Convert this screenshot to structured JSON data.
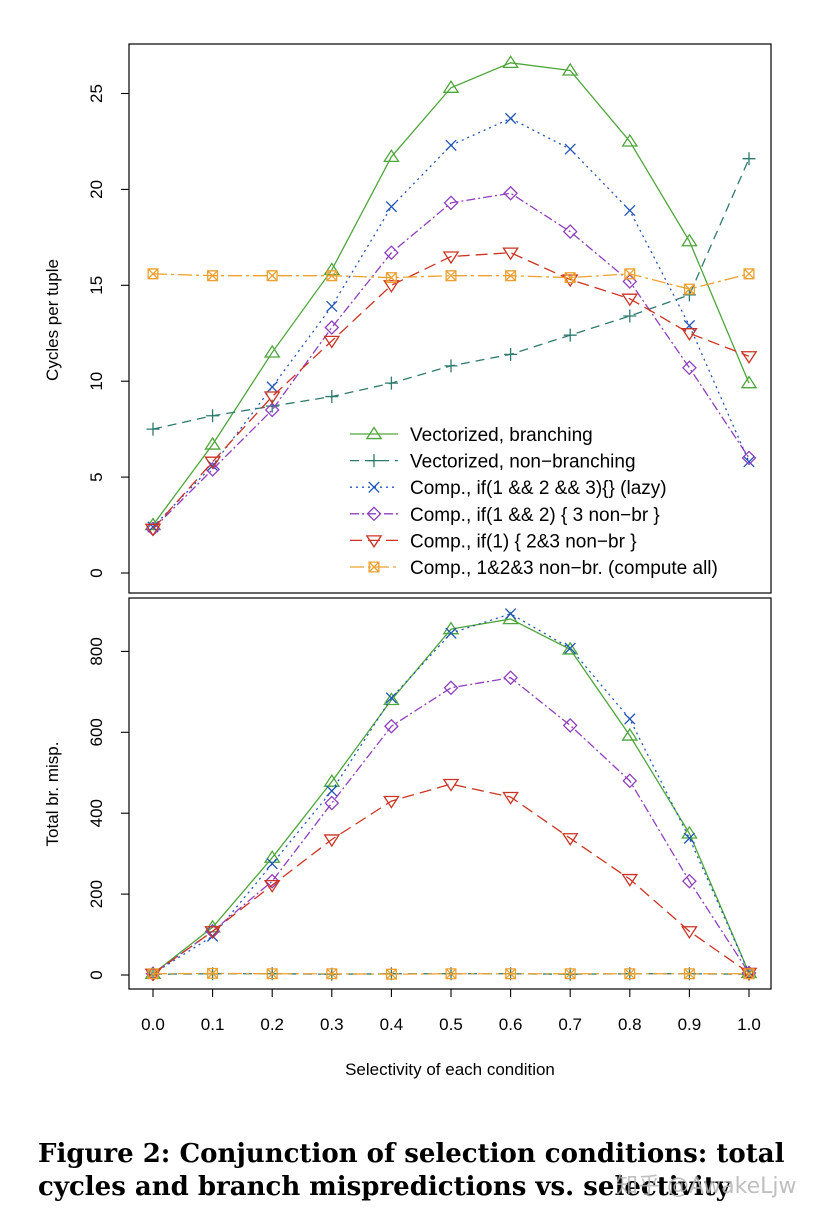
{
  "chart_data": [
    {
      "type": "line",
      "ylabel": "Cycles per tuple",
      "xlabel": "",
      "ylim": [
        0,
        27
      ],
      "yticks": [
        0,
        5,
        10,
        15,
        20,
        25
      ],
      "legend_position": "bottom-right",
      "x": [
        0.0,
        0.1,
        0.2,
        0.3,
        0.4,
        0.5,
        0.6,
        0.7,
        0.8,
        0.9,
        1.0
      ],
      "series": [
        {
          "name": "Vectorized, branching",
          "color": "#4da63a",
          "dash": "",
          "marker": "triangle-up",
          "values": [
            2.5,
            6.7,
            11.5,
            15.8,
            21.7,
            25.3,
            26.6,
            26.2,
            22.5,
            17.3,
            9.9
          ]
        },
        {
          "name": "Vectorized, non−branching",
          "color": "#2d7a6e",
          "dash": "9 6",
          "marker": "plus",
          "values": [
            7.5,
            8.2,
            8.7,
            9.2,
            9.9,
            10.8,
            11.4,
            12.4,
            13.4,
            14.5,
            21.6
          ]
        },
        {
          "name": "Comp., if(1 && 2 && 3){} (lazy)",
          "color": "#2255b8",
          "dash": "2 4",
          "marker": "cross",
          "values": [
            2.4,
            5.6,
            9.7,
            13.9,
            19.1,
            22.3,
            23.7,
            22.1,
            18.9,
            12.9,
            5.8
          ]
        },
        {
          "name": "Comp., if(1 && 2) { 3 non−br }",
          "color": "#8f3fbf",
          "dash": "9 3 2 3",
          "marker": "diamond",
          "values": [
            2.3,
            5.4,
            8.5,
            12.8,
            16.7,
            19.3,
            19.8,
            17.8,
            15.2,
            10.7,
            6.0
          ]
        },
        {
          "name": "Comp., if(1) { 2&3 non−br }",
          "color": "#cc3322",
          "dash": "12 6",
          "marker": "triangle-down",
          "values": [
            2.3,
            5.8,
            9.2,
            12.1,
            15.0,
            16.5,
            16.7,
            15.3,
            14.3,
            12.5,
            11.3
          ]
        },
        {
          "name": "Comp., 1&2&3 non−br. (compute all)",
          "color": "#eda030",
          "dash": "14 4 3 4",
          "marker": "square-x",
          "values": [
            15.6,
            15.5,
            15.5,
            15.5,
            15.4,
            15.5,
            15.5,
            15.4,
            15.6,
            14.8,
            15.6
          ]
        }
      ]
    },
    {
      "type": "line",
      "ylabel": "Total br. misp.",
      "xlabel": "Selectivity of each condition",
      "ylim": [
        0,
        910
      ],
      "yticks": [
        0,
        200,
        400,
        600,
        800
      ],
      "xticks": [
        "0.0",
        "0.1",
        "0.2",
        "0.3",
        "0.4",
        "0.5",
        "0.6",
        "0.7",
        "0.8",
        "0.9",
        "1.0"
      ],
      "x": [
        0.0,
        0.1,
        0.2,
        0.3,
        0.4,
        0.5,
        0.6,
        0.7,
        0.8,
        0.9,
        1.0
      ],
      "series": [
        {
          "name": "Vectorized, branching",
          "values": [
            3,
            118,
            290,
            478,
            680,
            855,
            880,
            805,
            592,
            350,
            5
          ]
        },
        {
          "name": "Vectorized, non−branching",
          "values": [
            2,
            3,
            3,
            2,
            3,
            3,
            3,
            2,
            3,
            3,
            2
          ]
        },
        {
          "name": "Comp., if(1 && 2 && 3){} (lazy)",
          "values": [
            3,
            96,
            275,
            455,
            685,
            845,
            893,
            808,
            633,
            338,
            5
          ]
        },
        {
          "name": "Comp., if(1 && 2) { 3 non−br }",
          "values": [
            3,
            108,
            232,
            425,
            615,
            710,
            735,
            617,
            480,
            232,
            5
          ]
        },
        {
          "name": "Comp., if(1) { 2&3 non−br }",
          "values": [
            3,
            108,
            222,
            335,
            430,
            472,
            440,
            338,
            237,
            108,
            5
          ]
        },
        {
          "name": "Comp., 1&2&3 non−br. (compute all)",
          "values": [
            3,
            4,
            3,
            3,
            2,
            3,
            3,
            3,
            3,
            3,
            3
          ]
        }
      ]
    }
  ],
  "caption": {
    "line1": "Figure 2: Conjunction of selection conditions: total",
    "line2": "cycles and branch mispredictions vs. selectivity"
  },
  "watermark": "知乎 @AwakeLjw"
}
